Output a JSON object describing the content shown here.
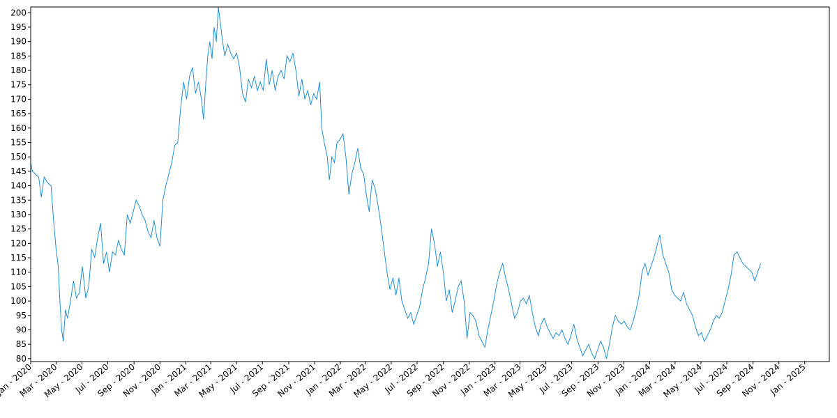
{
  "chart_data": {
    "type": "line",
    "title": "",
    "xlabel": "",
    "ylabel": "",
    "ylim": [
      79,
      202
    ],
    "xlim": [
      "2020-01-01",
      "2025-02-28"
    ],
    "grid": false,
    "legend": "none",
    "line_color": "#1f8fd0",
    "y_ticks": [
      80,
      85,
      90,
      95,
      100,
      105,
      110,
      115,
      120,
      125,
      130,
      135,
      140,
      145,
      150,
      155,
      160,
      165,
      170,
      175,
      180,
      185,
      190,
      195,
      200
    ],
    "x_ticks": [
      {
        "date": "2020-01-01",
        "label": "Jan - 2020"
      },
      {
        "date": "2020-03-01",
        "label": "Mar - 2020"
      },
      {
        "date": "2020-05-01",
        "label": "May - 2020"
      },
      {
        "date": "2020-07-01",
        "label": "Jul - 2020"
      },
      {
        "date": "2020-09-01",
        "label": "Sep - 2020"
      },
      {
        "date": "2020-11-01",
        "label": "Nov - 2020"
      },
      {
        "date": "2021-01-01",
        "label": "Jan - 2021"
      },
      {
        "date": "2021-03-01",
        "label": "Mar - 2021"
      },
      {
        "date": "2021-05-01",
        "label": "May - 2021"
      },
      {
        "date": "2021-07-01",
        "label": "Jul - 2021"
      },
      {
        "date": "2021-09-01",
        "label": "Sep - 2021"
      },
      {
        "date": "2021-11-01",
        "label": "Nov - 2021"
      },
      {
        "date": "2022-01-01",
        "label": "Jan - 2022"
      },
      {
        "date": "2022-03-01",
        "label": "Mar - 2022"
      },
      {
        "date": "2022-05-01",
        "label": "May - 2022"
      },
      {
        "date": "2022-07-01",
        "label": "Jul - 2022"
      },
      {
        "date": "2022-09-01",
        "label": "Sep - 2022"
      },
      {
        "date": "2022-11-01",
        "label": "Nov - 2022"
      },
      {
        "date": "2023-01-01",
        "label": "Jan - 2023"
      },
      {
        "date": "2023-03-01",
        "label": "Mar - 2023"
      },
      {
        "date": "2023-05-01",
        "label": "May - 2023"
      },
      {
        "date": "2023-07-01",
        "label": "Jul - 2023"
      },
      {
        "date": "2023-09-01",
        "label": "Sep - 2023"
      },
      {
        "date": "2023-11-01",
        "label": "Nov - 2023"
      },
      {
        "date": "2024-01-01",
        "label": "Jan - 2024"
      },
      {
        "date": "2024-03-01",
        "label": "Mar - 2024"
      },
      {
        "date": "2024-05-01",
        "label": "May - 2024"
      },
      {
        "date": "2024-07-01",
        "label": "Jul - 2024"
      },
      {
        "date": "2024-09-01",
        "label": "Sep - 2024"
      },
      {
        "date": "2024-11-01",
        "label": "Nov - 2024"
      },
      {
        "date": "2025-01-01",
        "label": "Jan - 2025"
      }
    ],
    "series": [
      {
        "points": [
          [
            "2020-01-01",
            148
          ],
          [
            "2020-01-05",
            145
          ],
          [
            "2020-01-12",
            144
          ],
          [
            "2020-01-20",
            143
          ],
          [
            "2020-01-26",
            136
          ],
          [
            "2020-02-02",
            143
          ],
          [
            "2020-02-10",
            141
          ],
          [
            "2020-02-18",
            140
          ],
          [
            "2020-02-24",
            128
          ],
          [
            "2020-03-01",
            118
          ],
          [
            "2020-03-06",
            112
          ],
          [
            "2020-03-10",
            100
          ],
          [
            "2020-03-14",
            90
          ],
          [
            "2020-03-18",
            86
          ],
          [
            "2020-03-23",
            97
          ],
          [
            "2020-03-28",
            94
          ],
          [
            "2020-04-04",
            100
          ],
          [
            "2020-04-11",
            107
          ],
          [
            "2020-04-18",
            101
          ],
          [
            "2020-04-25",
            103
          ],
          [
            "2020-05-02",
            112
          ],
          [
            "2020-05-10",
            101
          ],
          [
            "2020-05-17",
            105
          ],
          [
            "2020-05-24",
            118
          ],
          [
            "2020-05-31",
            115
          ],
          [
            "2020-06-07",
            122
          ],
          [
            "2020-06-14",
            127
          ],
          [
            "2020-06-21",
            113
          ],
          [
            "2020-06-28",
            117
          ],
          [
            "2020-07-05",
            110
          ],
          [
            "2020-07-12",
            117
          ],
          [
            "2020-07-19",
            116
          ],
          [
            "2020-07-26",
            121
          ],
          [
            "2020-08-02",
            118
          ],
          [
            "2020-08-09",
            116
          ],
          [
            "2020-08-16",
            130
          ],
          [
            "2020-08-23",
            127
          ],
          [
            "2020-08-30",
            131
          ],
          [
            "2020-09-06",
            135
          ],
          [
            "2020-09-13",
            133
          ],
          [
            "2020-09-20",
            130
          ],
          [
            "2020-09-27",
            128
          ],
          [
            "2020-10-04",
            124
          ],
          [
            "2020-10-11",
            122
          ],
          [
            "2020-10-18",
            128
          ],
          [
            "2020-10-25",
            122
          ],
          [
            "2020-11-01",
            119
          ],
          [
            "2020-11-08",
            135
          ],
          [
            "2020-11-15",
            140
          ],
          [
            "2020-11-22",
            144
          ],
          [
            "2020-11-29",
            148
          ],
          [
            "2020-12-06",
            154
          ],
          [
            "2020-12-13",
            155
          ],
          [
            "2020-12-20",
            167
          ],
          [
            "2020-12-27",
            176
          ],
          [
            "2021-01-03",
            170
          ],
          [
            "2021-01-10",
            178
          ],
          [
            "2021-01-17",
            181
          ],
          [
            "2021-01-24",
            172
          ],
          [
            "2021-01-31",
            176
          ],
          [
            "2021-02-07",
            170
          ],
          [
            "2021-02-12",
            163
          ],
          [
            "2021-02-17",
            175
          ],
          [
            "2021-02-22",
            185
          ],
          [
            "2021-02-27",
            190
          ],
          [
            "2021-03-04",
            184
          ],
          [
            "2021-03-09",
            195
          ],
          [
            "2021-03-14",
            190
          ],
          [
            "2021-03-19",
            202
          ],
          [
            "2021-03-24",
            196
          ],
          [
            "2021-03-29",
            190
          ],
          [
            "2021-04-03",
            185
          ],
          [
            "2021-04-10",
            189
          ],
          [
            "2021-04-17",
            186
          ],
          [
            "2021-04-24",
            184
          ],
          [
            "2021-05-01",
            186
          ],
          [
            "2021-05-08",
            181
          ],
          [
            "2021-05-15",
            172
          ],
          [
            "2021-05-22",
            169
          ],
          [
            "2021-05-29",
            177
          ],
          [
            "2021-06-05",
            174
          ],
          [
            "2021-06-12",
            178
          ],
          [
            "2021-06-19",
            173
          ],
          [
            "2021-06-26",
            176
          ],
          [
            "2021-07-03",
            173
          ],
          [
            "2021-07-10",
            184
          ],
          [
            "2021-07-17",
            175
          ],
          [
            "2021-07-24",
            180
          ],
          [
            "2021-07-31",
            173
          ],
          [
            "2021-08-07",
            178
          ],
          [
            "2021-08-14",
            180
          ],
          [
            "2021-08-21",
            177
          ],
          [
            "2021-08-28",
            185
          ],
          [
            "2021-09-04",
            183
          ],
          [
            "2021-09-11",
            186
          ],
          [
            "2021-09-18",
            180
          ],
          [
            "2021-09-25",
            171
          ],
          [
            "2021-10-02",
            177
          ],
          [
            "2021-10-09",
            170
          ],
          [
            "2021-10-16",
            173
          ],
          [
            "2021-10-23",
            168
          ],
          [
            "2021-10-30",
            172
          ],
          [
            "2021-11-06",
            170
          ],
          [
            "2021-11-13",
            176
          ],
          [
            "2021-11-18",
            160
          ],
          [
            "2021-11-24",
            155
          ],
          [
            "2021-12-01",
            150
          ],
          [
            "2021-12-06",
            142
          ],
          [
            "2021-12-12",
            150
          ],
          [
            "2021-12-18",
            148
          ],
          [
            "2021-12-24",
            155
          ],
          [
            "2021-12-31",
            156
          ],
          [
            "2022-01-07",
            158
          ],
          [
            "2022-01-14",
            150
          ],
          [
            "2022-01-21",
            137
          ],
          [
            "2022-01-28",
            144
          ],
          [
            "2022-02-04",
            148
          ],
          [
            "2022-02-11",
            153
          ],
          [
            "2022-02-18",
            146
          ],
          [
            "2022-02-25",
            144
          ],
          [
            "2022-03-03",
            137
          ],
          [
            "2022-03-10",
            131
          ],
          [
            "2022-03-17",
            142
          ],
          [
            "2022-03-24",
            139
          ],
          [
            "2022-03-31",
            133
          ],
          [
            "2022-04-07",
            126
          ],
          [
            "2022-04-14",
            118
          ],
          [
            "2022-04-21",
            110
          ],
          [
            "2022-04-28",
            104
          ],
          [
            "2022-05-05",
            108
          ],
          [
            "2022-05-12",
            102
          ],
          [
            "2022-05-19",
            108
          ],
          [
            "2022-05-26",
            100
          ],
          [
            "2022-06-02",
            97
          ],
          [
            "2022-06-09",
            94
          ],
          [
            "2022-06-16",
            96
          ],
          [
            "2022-06-23",
            92
          ],
          [
            "2022-06-30",
            95
          ],
          [
            "2022-07-07",
            98
          ],
          [
            "2022-07-14",
            104
          ],
          [
            "2022-07-21",
            108
          ],
          [
            "2022-07-28",
            113
          ],
          [
            "2022-08-04",
            125
          ],
          [
            "2022-08-11",
            120
          ],
          [
            "2022-08-18",
            112
          ],
          [
            "2022-08-25",
            117
          ],
          [
            "2022-09-01",
            110
          ],
          [
            "2022-09-08",
            100
          ],
          [
            "2022-09-15",
            104
          ],
          [
            "2022-09-22",
            96
          ],
          [
            "2022-09-29",
            100
          ],
          [
            "2022-10-06",
            105
          ],
          [
            "2022-10-13",
            107
          ],
          [
            "2022-10-20",
            100
          ],
          [
            "2022-10-27",
            87
          ],
          [
            "2022-11-03",
            96
          ],
          [
            "2022-11-10",
            95
          ],
          [
            "2022-11-17",
            93
          ],
          [
            "2022-11-24",
            88
          ],
          [
            "2022-12-01",
            86
          ],
          [
            "2022-12-08",
            84
          ],
          [
            "2022-12-15",
            90
          ],
          [
            "2022-12-22",
            95
          ],
          [
            "2022-12-29",
            100
          ],
          [
            "2023-01-05",
            106
          ],
          [
            "2023-01-12",
            110
          ],
          [
            "2023-01-19",
            113
          ],
          [
            "2023-01-26",
            108
          ],
          [
            "2023-02-02",
            104
          ],
          [
            "2023-02-09",
            99
          ],
          [
            "2023-02-16",
            94
          ],
          [
            "2023-02-23",
            96
          ],
          [
            "2023-03-02",
            100
          ],
          [
            "2023-03-09",
            101
          ],
          [
            "2023-03-16",
            99
          ],
          [
            "2023-03-23",
            102
          ],
          [
            "2023-03-30",
            96
          ],
          [
            "2023-04-06",
            91
          ],
          [
            "2023-04-13",
            88
          ],
          [
            "2023-04-20",
            92
          ],
          [
            "2023-04-27",
            94
          ],
          [
            "2023-05-04",
            91
          ],
          [
            "2023-05-11",
            89
          ],
          [
            "2023-05-18",
            87
          ],
          [
            "2023-05-25",
            89
          ],
          [
            "2023-06-01",
            88
          ],
          [
            "2023-06-08",
            90
          ],
          [
            "2023-06-15",
            87
          ],
          [
            "2023-06-22",
            85
          ],
          [
            "2023-06-29",
            88
          ],
          [
            "2023-07-06",
            92
          ],
          [
            "2023-07-13",
            87
          ],
          [
            "2023-07-20",
            84
          ],
          [
            "2023-07-27",
            81
          ],
          [
            "2023-08-03",
            83
          ],
          [
            "2023-08-10",
            85
          ],
          [
            "2023-08-17",
            82
          ],
          [
            "2023-08-24",
            80
          ],
          [
            "2023-08-31",
            83
          ],
          [
            "2023-09-07",
            86
          ],
          [
            "2023-09-14",
            84
          ],
          [
            "2023-09-21",
            80
          ],
          [
            "2023-09-28",
            85
          ],
          [
            "2023-10-05",
            91
          ],
          [
            "2023-10-12",
            95
          ],
          [
            "2023-10-19",
            93
          ],
          [
            "2023-10-26",
            92
          ],
          [
            "2023-11-02",
            93
          ],
          [
            "2023-11-09",
            91
          ],
          [
            "2023-11-16",
            90
          ],
          [
            "2023-11-23",
            93
          ],
          [
            "2023-11-30",
            97
          ],
          [
            "2023-12-07",
            102
          ],
          [
            "2023-12-14",
            110
          ],
          [
            "2023-12-21",
            113
          ],
          [
            "2023-12-28",
            109
          ],
          [
            "2024-01-04",
            112
          ],
          [
            "2024-01-11",
            115
          ],
          [
            "2024-01-18",
            119
          ],
          [
            "2024-01-25",
            123
          ],
          [
            "2024-02-01",
            116
          ],
          [
            "2024-02-08",
            113
          ],
          [
            "2024-02-15",
            110
          ],
          [
            "2024-02-22",
            104
          ],
          [
            "2024-02-29",
            102
          ],
          [
            "2024-03-07",
            101
          ],
          [
            "2024-03-14",
            100
          ],
          [
            "2024-03-21",
            103
          ],
          [
            "2024-03-28",
            99
          ],
          [
            "2024-04-04",
            97
          ],
          [
            "2024-04-11",
            95
          ],
          [
            "2024-04-18",
            91
          ],
          [
            "2024-04-25",
            88
          ],
          [
            "2024-05-02",
            89
          ],
          [
            "2024-05-09",
            86
          ],
          [
            "2024-05-16",
            88
          ],
          [
            "2024-05-23",
            90
          ],
          [
            "2024-05-30",
            93
          ],
          [
            "2024-06-06",
            95
          ],
          [
            "2024-06-13",
            94
          ],
          [
            "2024-06-20",
            96
          ],
          [
            "2024-06-27",
            100
          ],
          [
            "2024-07-04",
            104
          ],
          [
            "2024-07-11",
            109
          ],
          [
            "2024-07-18",
            116
          ],
          [
            "2024-07-25",
            117
          ],
          [
            "2024-08-01",
            115
          ],
          [
            "2024-08-08",
            113
          ],
          [
            "2024-08-15",
            112
          ],
          [
            "2024-08-22",
            111
          ],
          [
            "2024-08-29",
            110
          ],
          [
            "2024-09-05",
            107
          ],
          [
            "2024-09-12",
            110
          ],
          [
            "2024-09-19",
            113
          ]
        ]
      }
    ]
  }
}
